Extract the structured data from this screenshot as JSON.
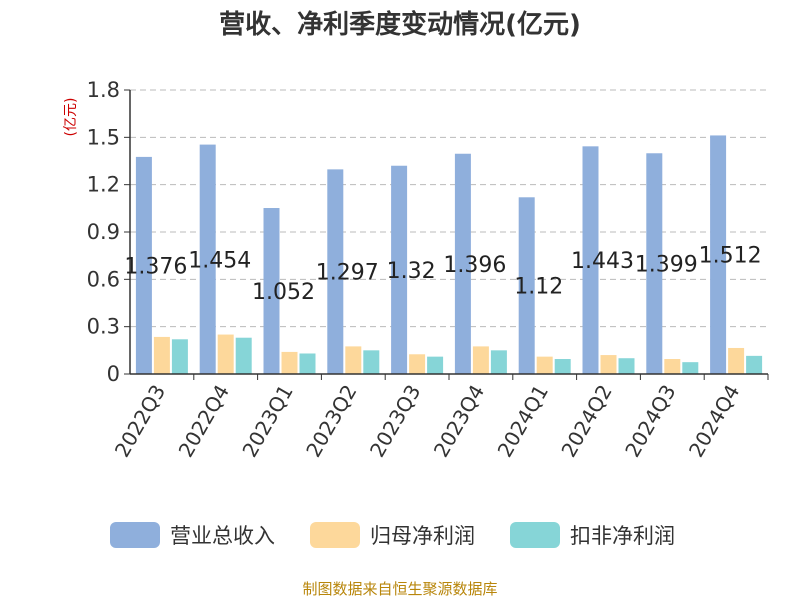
{
  "chart_data": {
    "type": "bar",
    "title": "营收、净利季度变动情况(亿元)",
    "ylabel": "(亿元)",
    "ylim": [
      0,
      1.8
    ],
    "yticks": [
      "0",
      "0.3",
      "0.6",
      "0.9",
      "1.2",
      "1.5",
      "1.8"
    ],
    "grid": true,
    "legend_position": "bottom",
    "categories": [
      "2022Q3",
      "2022Q4",
      "2023Q1",
      "2023Q2",
      "2023Q3",
      "2023Q4",
      "2024Q1",
      "2024Q2",
      "2024Q3",
      "2024Q4"
    ],
    "series": [
      {
        "name": "营业总收入",
        "color": "#8fafdc",
        "values": [
          1.376,
          1.454,
          1.052,
          1.297,
          1.32,
          1.396,
          1.12,
          1.443,
          1.399,
          1.512
        ],
        "labels": [
          "1.376",
          "1.454",
          "1.052",
          "1.297",
          "1.32",
          "1.396",
          "1.12",
          "1.443",
          "1.399",
          "1.512"
        ]
      },
      {
        "name": "归母净利润",
        "color": "#fdd89b",
        "values": [
          0.235,
          0.25,
          0.14,
          0.175,
          0.125,
          0.175,
          0.11,
          0.12,
          0.095,
          0.165
        ]
      },
      {
        "name": "扣非净利润",
        "color": "#86d5d7",
        "values": [
          0.22,
          0.23,
          0.13,
          0.15,
          0.11,
          0.15,
          0.095,
          0.1,
          0.075,
          0.115
        ]
      }
    ]
  },
  "source_text": "制图数据来自恒生聚源数据库"
}
